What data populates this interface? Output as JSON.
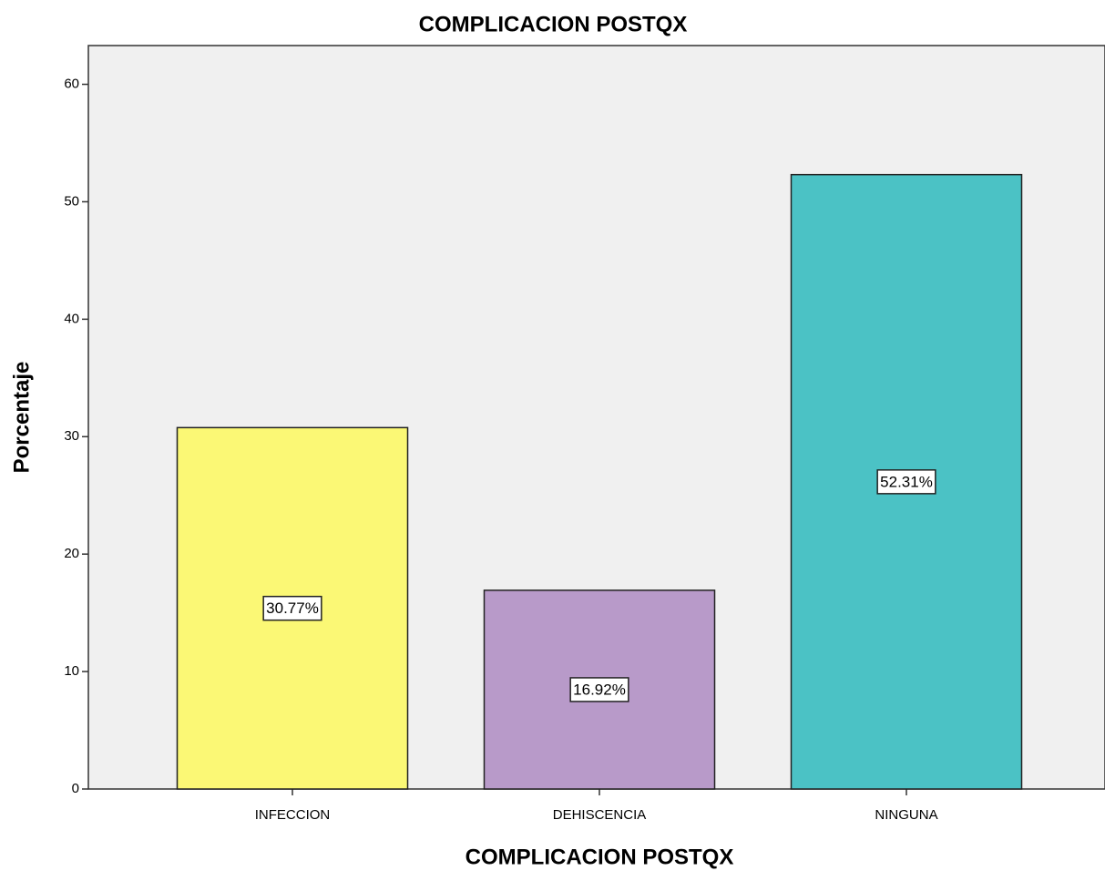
{
  "chart_data": {
    "type": "bar",
    "title": "COMPLICACION POSTQX",
    "x_label": "COMPLICACION POSTQX",
    "y_label": "Porcentaje",
    "categories": [
      "INFECCION",
      "DEHISCENCIA",
      "NINGUNA"
    ],
    "values": [
      30.77,
      16.92,
      52.31
    ],
    "value_labels": [
      "30.77%",
      "16.92%",
      "52.31%"
    ],
    "colors": [
      "#fbf875",
      "#b89ac9",
      "#4bc2c5"
    ],
    "ylim": [
      0,
      63.3
    ],
    "yticks": [
      0,
      10,
      20,
      30,
      40,
      50,
      60
    ],
    "grid": false
  }
}
